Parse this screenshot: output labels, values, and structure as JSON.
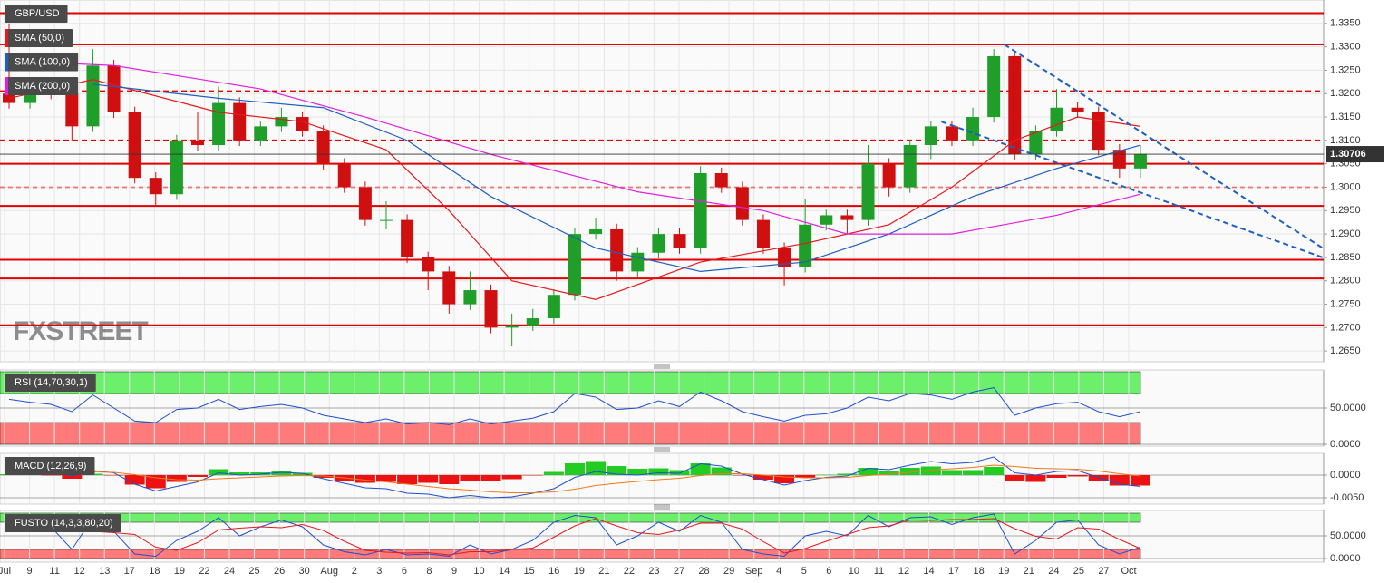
{
  "chart_data": [
    {
      "type": "candlestick",
      "title": "GBP/USD",
      "watermark": "FXSTREET",
      "x_labels": [
        "Jul",
        "9",
        "11",
        "12",
        "13",
        "17",
        "18",
        "19",
        "22",
        "24",
        "25",
        "26",
        "30",
        "Aug",
        "2",
        "3",
        "6",
        "8",
        "9",
        "10",
        "14",
        "15",
        "16",
        "19",
        "21",
        "22",
        "23",
        "27",
        "28",
        "29",
        "Sep",
        "4",
        "5",
        "6",
        "10",
        "11",
        "12",
        "14",
        "17",
        "18",
        "19",
        "21",
        "24",
        "25",
        "27",
        "Oct"
      ],
      "open": [
        1.32,
        1.318,
        1.322,
        1.32,
        1.313,
        1.326,
        1.316,
        1.302,
        1.2985,
        1.31,
        1.309,
        1.318,
        1.31,
        1.313,
        1.315,
        1.312,
        1.305,
        1.3,
        1.293,
        1.293,
        1.285,
        1.282,
        1.275,
        1.278,
        1.27,
        1.2705,
        1.272,
        1.277,
        1.29,
        1.291,
        1.282,
        1.286,
        1.29,
        1.287,
        1.303,
        1.3,
        1.293,
        1.287,
        1.283,
        1.292,
        1.294,
        1.293,
        1.305,
        1.3,
        1.309,
        1.313,
        1.31,
        1.315,
        1.328,
        1.307,
        1.312,
        1.317,
        1.316,
        1.308,
        1.304
      ],
      "high": [
        1.335,
        1.3232,
        1.3232,
        1.3212,
        1.3295,
        1.3272,
        1.3172,
        1.3032,
        1.3112,
        1.316,
        1.3215,
        1.3192,
        1.3142,
        1.317,
        1.3162,
        1.3132,
        1.3062,
        1.3012,
        1.297,
        1.2942,
        1.2862,
        1.2832,
        1.282,
        1.2792,
        1.273,
        1.274,
        1.2782,
        1.2912,
        1.2935,
        1.2922,
        1.2872,
        1.2912,
        1.2912,
        1.3045,
        1.3042,
        1.3012,
        1.2942,
        1.2882,
        1.2975,
        1.2952,
        1.2952,
        1.309,
        1.3062,
        1.3102,
        1.3142,
        1.3142,
        1.317,
        1.3295,
        1.3292,
        1.3132,
        1.321,
        1.3182,
        1.3172,
        1.3092,
        1.309
      ],
      "low": [
        1.3168,
        1.3168,
        1.3188,
        1.31,
        1.3118,
        1.3148,
        1.3008,
        1.296,
        1.2973,
        1.3078,
        1.3078,
        1.3088,
        1.3088,
        1.3118,
        1.3108,
        1.3038,
        1.2988,
        1.2918,
        1.291,
        1.2838,
        1.278,
        1.273,
        1.2738,
        1.2688,
        1.266,
        1.2693,
        1.2708,
        1.2758,
        1.2888,
        1.28,
        1.2808,
        1.2848,
        1.2858,
        1.2858,
        1.2988,
        1.2918,
        1.2858,
        1.279,
        1.2818,
        1.2908,
        1.29,
        1.2918,
        1.298,
        1.2988,
        1.306,
        1.3088,
        1.3088,
        1.3138,
        1.3058,
        1.3058,
        1.3108,
        1.3148,
        1.3068,
        1.302,
        1.302
      ],
      "close": [
        1.318,
        1.322,
        1.32,
        1.313,
        1.326,
        1.316,
        1.302,
        1.2985,
        1.31,
        1.309,
        1.318,
        1.31,
        1.313,
        1.315,
        1.312,
        1.305,
        1.3,
        1.293,
        1.293,
        1.285,
        1.282,
        1.275,
        1.278,
        1.27,
        1.2705,
        1.272,
        1.277,
        1.29,
        1.291,
        1.282,
        1.286,
        1.29,
        1.287,
        1.303,
        1.3,
        1.293,
        1.287,
        1.283,
        1.292,
        1.294,
        1.293,
        1.305,
        1.3,
        1.309,
        1.313,
        1.31,
        1.315,
        1.328,
        1.307,
        1.312,
        1.317,
        1.316,
        1.308,
        1.304,
        1.3071
      ],
      "up_color": "#1f9e2a",
      "down_color": "#d01010",
      "overlays": [
        {
          "name": "SMA (50,0)",
          "color": "#e41a1c",
          "x": [
            0,
            4,
            10,
            14,
            18,
            21,
            24,
            28,
            33,
            38,
            42,
            45,
            48,
            51,
            54
          ],
          "values": [
            1.319,
            1.323,
            1.316,
            1.314,
            1.308,
            1.295,
            1.28,
            1.276,
            1.284,
            1.288,
            1.292,
            1.3,
            1.31,
            1.315,
            1.313
          ]
        },
        {
          "name": "SMA (100,0)",
          "color": "#1f5fbf",
          "x": [
            4,
            10,
            15,
            19,
            23,
            28,
            33,
            38,
            42,
            46,
            50,
            54
          ],
          "values": [
            1.322,
            1.319,
            1.317,
            1.31,
            1.298,
            1.287,
            1.282,
            1.284,
            1.29,
            1.298,
            1.304,
            1.309
          ]
        },
        {
          "name": "SMA (200,0)",
          "color": "#e020e0",
          "x": [
            0,
            5,
            12,
            17,
            23,
            30,
            36,
            40,
            45,
            50,
            54
          ],
          "values": [
            1.327,
            1.326,
            1.321,
            1.315,
            1.307,
            1.299,
            1.295,
            1.29,
            1.29,
            1.294,
            1.2985
          ]
        }
      ],
      "levels": [
        {
          "value": 1.3372,
          "style": "solid"
        },
        {
          "value": 1.3305,
          "style": "solid"
        },
        {
          "value": 1.3205,
          "style": "dashed"
        },
        {
          "value": 1.31,
          "style": "dashed"
        },
        {
          "value": 1.305,
          "style": "solid"
        },
        {
          "value": 1.3,
          "style": "faint"
        },
        {
          "value": 1.296,
          "style": "solid"
        },
        {
          "value": 1.2845,
          "style": "solid"
        },
        {
          "value": 1.2805,
          "style": "solid"
        },
        {
          "value": 1.2705,
          "style": "solid"
        }
      ],
      "level_color": "#e00000",
      "trendlines": [
        {
          "x": [
            47.5,
            62.7
          ],
          "values": [
            1.3305,
            1.287
          ]
        },
        {
          "x": [
            44.5,
            62.7
          ],
          "values": [
            1.314,
            1.285
          ]
        }
      ],
      "trendline_color": "#1f5fbf",
      "last_price": 1.30706,
      "ylim": [
        1.2629,
        1.34
      ],
      "yticks": [
        {
          "value": 1.265,
          "label": "1.2650"
        },
        {
          "value": 1.27,
          "label": "1.2700"
        },
        {
          "value": 1.275,
          "label": "1.2750"
        },
        {
          "value": 1.28,
          "label": "1.2800"
        },
        {
          "value": 1.285,
          "label": "1.2850"
        },
        {
          "value": 1.29,
          "label": "1.2900"
        },
        {
          "value": 1.295,
          "label": "1.2950"
        },
        {
          "value": 1.3,
          "label": "1.3000"
        },
        {
          "value": 1.305,
          "label": "1.3050"
        },
        {
          "value": 1.31,
          "label": "1.3100"
        },
        {
          "value": 1.315,
          "label": "1.3150"
        },
        {
          "value": 1.32,
          "label": "1.3200"
        },
        {
          "value": 1.325,
          "label": "1.3250"
        },
        {
          "value": 1.33,
          "label": "1.3300"
        },
        {
          "value": 1.335,
          "label": "1.3350"
        }
      ],
      "grid": true
    },
    {
      "type": "line",
      "title": "RSI (14,70,30,1)",
      "series": [
        {
          "color": "#1f4fd0",
          "values": [
            62,
            58,
            55,
            45,
            68,
            50,
            32,
            30,
            48,
            50,
            62,
            48,
            52,
            55,
            50,
            40,
            35,
            30,
            35,
            28,
            30,
            27,
            35,
            28,
            32,
            36,
            45,
            70,
            65,
            48,
            50,
            60,
            52,
            72,
            60,
            45,
            38,
            32,
            40,
            42,
            50,
            65,
            60,
            70,
            68,
            62,
            72,
            78,
            40,
            50,
            56,
            58,
            45,
            38,
            45
          ]
        }
      ],
      "bands": [
        {
          "from": 70,
          "to": 100,
          "color": "#6cf06c"
        },
        {
          "from": 0,
          "to": 30,
          "color": "#ff7b7b"
        }
      ],
      "ylim": [
        0,
        100
      ],
      "yticks": [
        {
          "value": 50,
          "label": "50.0000"
        },
        {
          "value": 0,
          "label": "0.0000"
        }
      ],
      "grid": true
    },
    {
      "type": "line",
      "title": "MACD (12,26,9)",
      "series": [
        {
          "color": "#1f4fd0",
          "values": [
            0.001,
            0.0012,
            0.0008,
            -0.0002,
            0.001,
            0.0005,
            -0.002,
            -0.0035,
            -0.0025,
            -0.0015,
            0.0005,
            0,
            0.0002,
            0.0006,
            0.0004,
            -0.0008,
            -0.0018,
            -0.0028,
            -0.003,
            -0.004,
            -0.0042,
            -0.005,
            -0.0045,
            -0.005,
            -0.0048,
            -0.004,
            -0.003,
            -0.0005,
            0.0008,
            0.0002,
            0,
            0.0005,
            0.0004,
            0.0025,
            0.002,
            0.0002,
            -0.001,
            -0.0022,
            -0.0012,
            -0.0005,
            -0.0002,
            0.0015,
            0.0012,
            0.0022,
            0.003,
            0.0025,
            0.0028,
            0.004,
            0.0005,
            0,
            0.0008,
            0.001,
            -0.0005,
            -0.002,
            -0.0025
          ]
        },
        {
          "color": "#f07a1a",
          "values": [
            0.0008,
            0.0009,
            0.0009,
            0.0006,
            0.0007,
            0.0006,
            0.0001,
            -0.0006,
            -0.001,
            -0.0011,
            -0.0008,
            -0.0006,
            -0.0004,
            -0.0002,
            -0.0001,
            -0.0002,
            -0.0006,
            -0.0011,
            -0.0015,
            -0.002,
            -0.0025,
            -0.003,
            -0.0033,
            -0.0037,
            -0.0039,
            -0.0039,
            -0.0037,
            -0.0031,
            -0.0023,
            -0.0018,
            -0.0014,
            -0.001,
            -0.0007,
            -0.0001,
            0.0003,
            0.0003,
            0,
            -0.0004,
            -0.0006,
            -0.0006,
            -0.0005,
            -0.0001,
            0.0002,
            0.0006,
            0.0011,
            0.0014,
            0.0017,
            0.0022,
            0.0019,
            0.0015,
            0.0014,
            0.0013,
            0.0009,
            0.0003,
            -0.0002
          ]
        }
      ],
      "histogram": {
        "up_color": "#22cc22",
        "down_color": "#ee1111",
        "values": [
          0.0002,
          0.0003,
          -0.0001,
          -0.0008,
          0.0003,
          -0.0001,
          -0.0021,
          -0.0029,
          -0.0015,
          -0.0004,
          0.0013,
          0.0006,
          0.0006,
          0.0008,
          0.0005,
          -0.0006,
          -0.0012,
          -0.0017,
          -0.0015,
          -0.002,
          -0.0017,
          -0.002,
          -0.0012,
          -0.0013,
          -0.0009,
          -0.0001,
          0.0007,
          0.0026,
          0.0031,
          0.002,
          0.0014,
          0.0015,
          0.0011,
          0.0026,
          0.0017,
          -0.0001,
          -0.001,
          -0.0018,
          -0.0006,
          0.0001,
          0.0003,
          0.0016,
          0.001,
          0.0016,
          0.0019,
          0.0011,
          0.0011,
          0.0018,
          -0.0014,
          -0.0015,
          -0.0006,
          -0.0003,
          -0.0014,
          -0.0023,
          -0.0023
        ]
      },
      "ylim": [
        -0.0064,
        0.0048
      ],
      "yticks": [
        {
          "value": 0,
          "label": "0.0000"
        },
        {
          "value": -0.005,
          "label": "-0.0050"
        }
      ],
      "grid": true
    },
    {
      "type": "line",
      "title": "FUSTO (14,3,3,80,20)",
      "series": [
        {
          "color": "#1f4fd0",
          "values": [
            85,
            90,
            70,
            20,
            90,
            60,
            10,
            5,
            40,
            60,
            90,
            50,
            70,
            85,
            70,
            30,
            15,
            8,
            20,
            8,
            10,
            5,
            30,
            10,
            20,
            40,
            80,
            95,
            90,
            30,
            50,
            80,
            60,
            95,
            80,
            20,
            10,
            5,
            50,
            60,
            50,
            95,
            70,
            90,
            92,
            75,
            90,
            98,
            10,
            40,
            80,
            85,
            30,
            10,
            25
          ]
        },
        {
          "color": "#e41a1c",
          "values": [
            80,
            85,
            82,
            60,
            60,
            57,
            53,
            25,
            18,
            35,
            63,
            67,
            70,
            68,
            75,
            62,
            38,
            18,
            14,
            12,
            13,
            8,
            15,
            15,
            20,
            23,
            47,
            72,
            88,
            72,
            57,
            53,
            63,
            78,
            78,
            65,
            37,
            12,
            22,
            38,
            53,
            68,
            72,
            85,
            84,
            86,
            86,
            88,
            66,
            49,
            43,
            68,
            65,
            42,
            22
          ]
        }
      ],
      "bands": [
        {
          "from": 80,
          "to": 100,
          "color": "#6cf06c"
        },
        {
          "from": 0,
          "to": 20,
          "color": "#ff7b7b"
        }
      ],
      "ylim": [
        0,
        100
      ],
      "yticks": [
        {
          "value": 50,
          "label": "50.0000"
        },
        {
          "value": 0,
          "label": "0.0000"
        }
      ],
      "grid": true
    }
  ]
}
